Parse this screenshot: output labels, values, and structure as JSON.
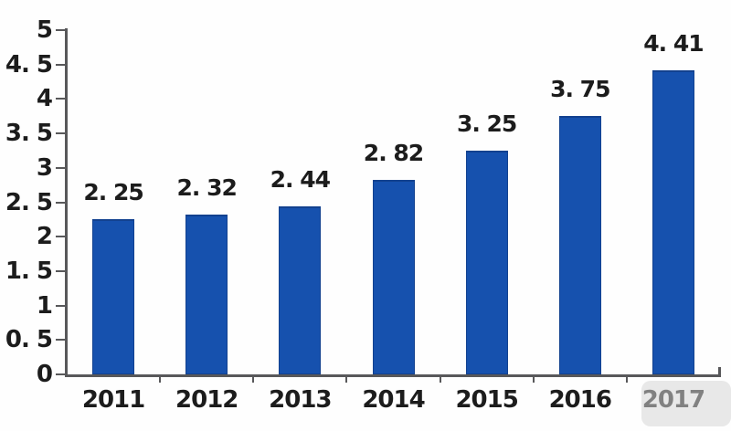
{
  "chart_data": {
    "type": "bar",
    "title": "",
    "xlabel": "",
    "ylabel": "",
    "categories": [
      "2011",
      "2012",
      "2013",
      "2014",
      "2015",
      "2016",
      "2017"
    ],
    "values": [
      2.25,
      2.32,
      2.44,
      2.82,
      3.25,
      3.75,
      4.41
    ],
    "value_labels": [
      "2. 25",
      "2. 32",
      "2. 44",
      "2. 82",
      "3. 25",
      "3. 75",
      "4. 41"
    ],
    "ylim": [
      0,
      5
    ],
    "ytick_values": [
      0,
      0.5,
      1,
      1.5,
      2,
      2.5,
      3,
      3.5,
      4,
      4.5,
      5
    ],
    "ytick_labels": [
      "0",
      "0. 5",
      "1",
      "1. 5",
      "2",
      "2. 5",
      "3",
      "3. 5",
      "4",
      "4. 5",
      "5"
    ],
    "grid": "off",
    "legend": "none",
    "bar_color": "#1651ae",
    "bar_edge_color": "#12418f",
    "axis_color": "#58585a",
    "text_color": "#1c1c1c"
  }
}
